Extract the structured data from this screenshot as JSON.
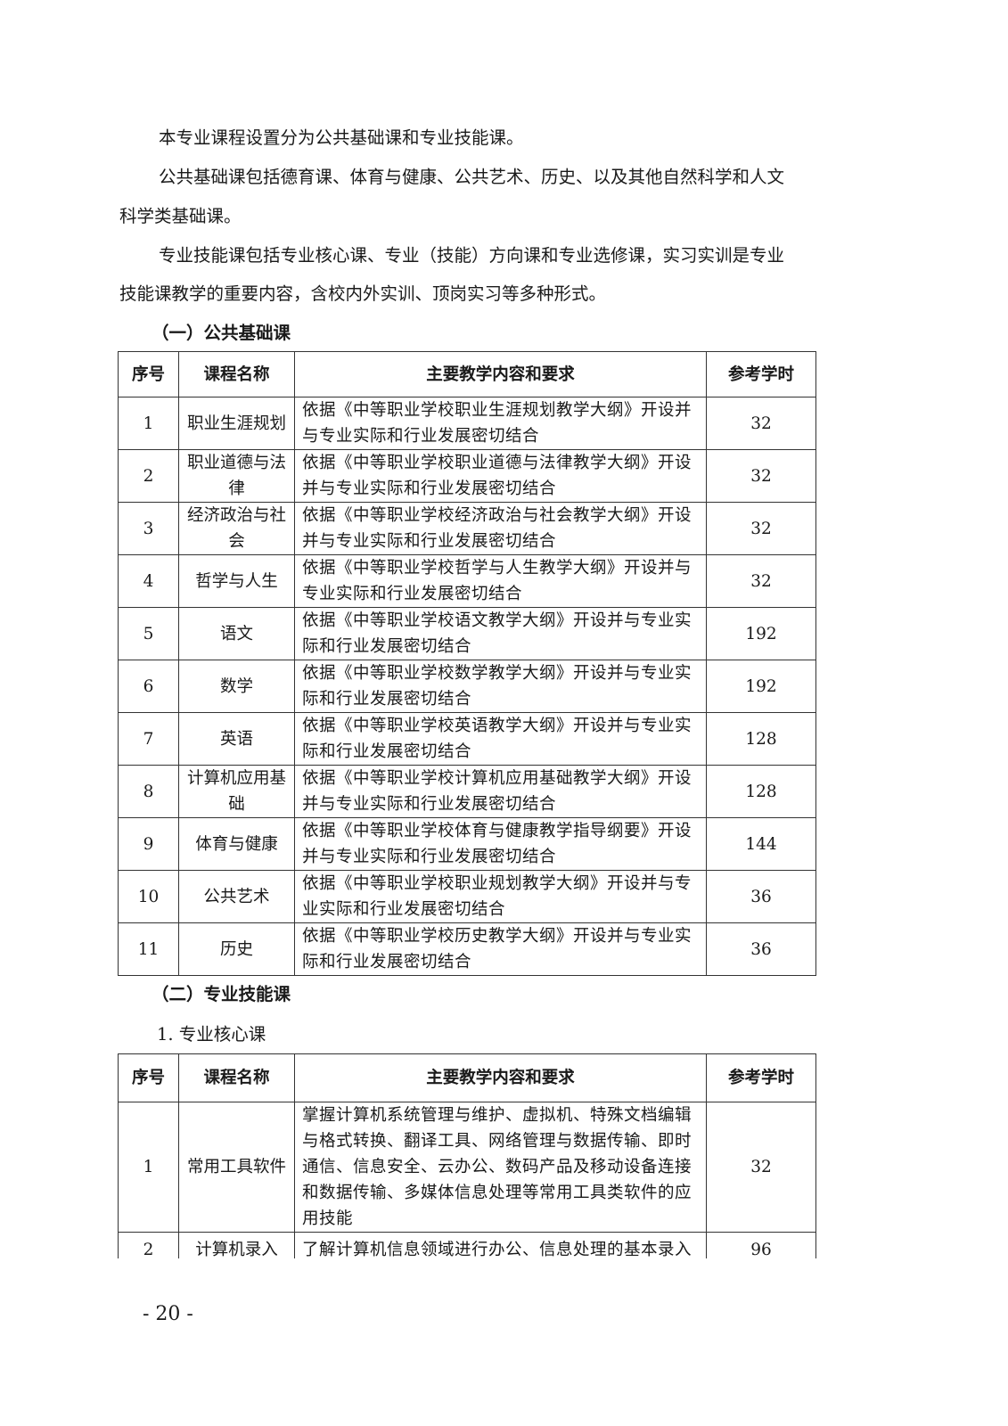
{
  "paragraphs": [
    "本专业课程设置分为公共基础课和专业技能课。",
    "公共基础课包括德育课、体育与健康、公共艺术、历史、以及其他自然科学和人文",
    "科学类基础课。",
    "专业技能课包括专业核心课、专业（技能）方向课和专业选修课，实习实训是专业",
    "技能课教学的重要内容，含校内外实训、顶岗实习等多种形式。"
  ],
  "section1": "（一）公共基础课",
  "headers": [
    "序号",
    "课程名称",
    "主要教学内容和要求",
    "参考学时"
  ],
  "table1": [
    [
      "1",
      "职业生涯规划",
      "依据《中等职业学校职业生涯规划教学大纲》开设并与专业实际和行业发展密切结合",
      "32"
    ],
    [
      "2",
      "职业道德与法律",
      "依据《中等职业学校职业道德与法律教学大纲》开设并与专业实际和行业发展密切结合",
      "32"
    ],
    [
      "3",
      "经济政治与社会",
      "依据《中等职业学校经济政治与社会教学大纲》开设并与专业实际和行业发展密切结合",
      "32"
    ],
    [
      "4",
      "哲学与人生",
      "依据《中等职业学校哲学与人生教学大纲》开设并与专业实际和行业发展密切结合",
      "32"
    ],
    [
      "5",
      "语文",
      "依据《中等职业学校语文教学大纲》开设并与专业实际和行业发展密切结合",
      "192"
    ],
    [
      "6",
      "数学",
      "依据《中等职业学校数学教学大纲》开设并与专业实际和行业发展密切结合",
      "192"
    ],
    [
      "7",
      "英语",
      "依据《中等职业学校英语教学大纲》开设并与专业实际和行业发展密切结合",
      "128"
    ],
    [
      "8",
      "计算机应用基础",
      "依据《中等职业学校计算机应用基础教学大纲》开设并与专业实际和行业发展密切结合",
      "128"
    ],
    [
      "9",
      "体育与健康",
      "依据《中等职业学校体育与健康教学指导纲要》开设并与专业实际和行业发展密切结合",
      "144"
    ],
    [
      "10",
      "公共艺术",
      "依据《中等职业学校职业规划教学大纲》开设并与专业实际和行业发展密切结合",
      "36"
    ],
    [
      "11",
      "历史",
      "依据《中等职业学校历史教学大纲》开设并与专业实际和行业发展密切结合",
      "36"
    ]
  ],
  "section2": "（二）专业技能课",
  "subsection": "1.  专业核心课",
  "table2": [
    [
      "1",
      "常用工具软件",
      "掌握计算机系统管理与维护、虚拟机、特殊文档编辑与格式转换、翻译工具、网络管理与数据传输、即时通信、信息安全、云办公、数码产品及移动设备连接和数据传输、多媒体信息处理等常用工具类软件的应用技能",
      "32"
    ],
    [
      "2",
      "计算机录入",
      "了解计算机信息领域进行办公、信息处理的基本录入",
      "96"
    ]
  ],
  "page_number": "- 20 -"
}
